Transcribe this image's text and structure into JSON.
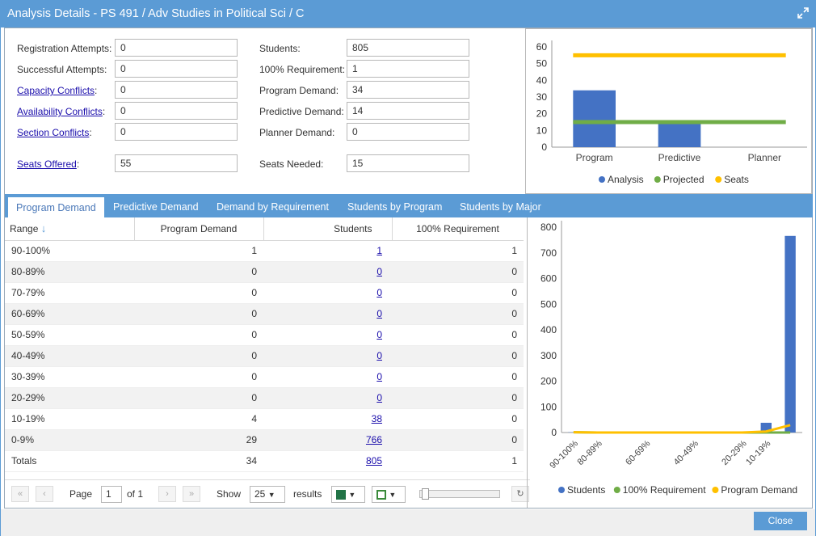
{
  "window": {
    "title": "Analysis Details - PS 491 / Adv Studies in Political Sci / C",
    "close_label": "Close"
  },
  "summary_left": [
    {
      "label": "Registration Attempts:",
      "value": "0",
      "link": false
    },
    {
      "label": "Successful Attempts:",
      "value": "0",
      "link": false
    },
    {
      "label": "Capacity Conflicts",
      "value": "0",
      "link": true
    },
    {
      "label": "Availability Conflicts",
      "value": "0",
      "link": true
    },
    {
      "label": "Section Conflicts",
      "value": "0",
      "link": true
    },
    {
      "label": "Seats Offered",
      "value": "55",
      "link": true
    }
  ],
  "summary_right": [
    {
      "label": "Students:",
      "value": "805"
    },
    {
      "label": "100% Requirement:",
      "value": "1"
    },
    {
      "label": "Program Demand:",
      "value": "34"
    },
    {
      "label": "Predictive Demand:",
      "value": "14"
    },
    {
      "label": "Planner Demand:",
      "value": "0"
    },
    {
      "label": "Seats Needed:",
      "value": "15"
    }
  ],
  "colon": ":",
  "tabs": [
    {
      "label": "Program Demand",
      "active": true
    },
    {
      "label": "Predictive Demand",
      "active": false
    },
    {
      "label": "Demand by Requirement",
      "active": false
    },
    {
      "label": "Students by Program",
      "active": false
    },
    {
      "label": "Students by Major",
      "active": false
    }
  ],
  "table": {
    "headers": [
      "Range",
      "Program Demand",
      "Students",
      "100% Requirement"
    ],
    "sort_icon": "arrow-down-icon",
    "rows": [
      [
        "90-100%",
        "1",
        "1",
        "1"
      ],
      [
        "80-89%",
        "0",
        "0",
        "0"
      ],
      [
        "70-79%",
        "0",
        "0",
        "0"
      ],
      [
        "60-69%",
        "0",
        "0",
        "0"
      ],
      [
        "50-59%",
        "0",
        "0",
        "0"
      ],
      [
        "40-49%",
        "0",
        "0",
        "0"
      ],
      [
        "30-39%",
        "0",
        "0",
        "0"
      ],
      [
        "20-29%",
        "0",
        "0",
        "0"
      ],
      [
        "10-19%",
        "4",
        "38",
        "0"
      ],
      [
        "0-9%",
        "29",
        "766",
        "0"
      ]
    ],
    "totals": [
      "Totals",
      "34",
      "805",
      "1"
    ]
  },
  "pager": {
    "page_label": "Page",
    "page_value": "1",
    "of_label": "of 1",
    "show_label": "Show",
    "page_size": "25",
    "results_label": "results"
  },
  "chart_data": [
    {
      "type": "bar",
      "categories": [
        "Program",
        "Predictive",
        "Planner"
      ],
      "ylim": [
        0,
        60
      ],
      "yticks": [
        0,
        10,
        20,
        30,
        40,
        50,
        60
      ],
      "series": [
        {
          "name": "Analysis",
          "kind": "bar",
          "color": "#4472c4",
          "values": [
            34,
            14,
            0
          ]
        },
        {
          "name": "Projected",
          "kind": "line",
          "color": "#70ad47",
          "values": [
            15,
            15,
            15
          ]
        },
        {
          "name": "Seats",
          "kind": "line",
          "color": "#ffc000",
          "values": [
            55,
            55,
            55
          ]
        }
      ],
      "legend": "bottom"
    },
    {
      "type": "bar",
      "categories": [
        "90-100%",
        "80-89%",
        "70-79%",
        "60-69%",
        "50-59%",
        "40-49%",
        "30-39%",
        "20-29%",
        "10-19%",
        "0-9%"
      ],
      "xtick_labels": [
        "90-100%",
        "80-89%",
        "",
        "60-69%",
        "",
        "40-49%",
        "",
        "20-29%",
        "10-19%",
        ""
      ],
      "ylim": [
        0,
        800
      ],
      "yticks": [
        0,
        100,
        200,
        300,
        400,
        500,
        600,
        700,
        800
      ],
      "series": [
        {
          "name": "Students",
          "kind": "bar",
          "color": "#4472c4",
          "values": [
            1,
            0,
            0,
            0,
            0,
            0,
            0,
            0,
            38,
            766
          ]
        },
        {
          "name": "100% Requirement",
          "kind": "line",
          "color": "#70ad47",
          "values": [
            1,
            0,
            0,
            0,
            0,
            0,
            0,
            0,
            0,
            0
          ]
        },
        {
          "name": "Program Demand",
          "kind": "line",
          "color": "#ffc000",
          "values": [
            1,
            0,
            0,
            0,
            0,
            0,
            0,
            0,
            4,
            29
          ]
        }
      ],
      "legend": "bottom"
    }
  ]
}
